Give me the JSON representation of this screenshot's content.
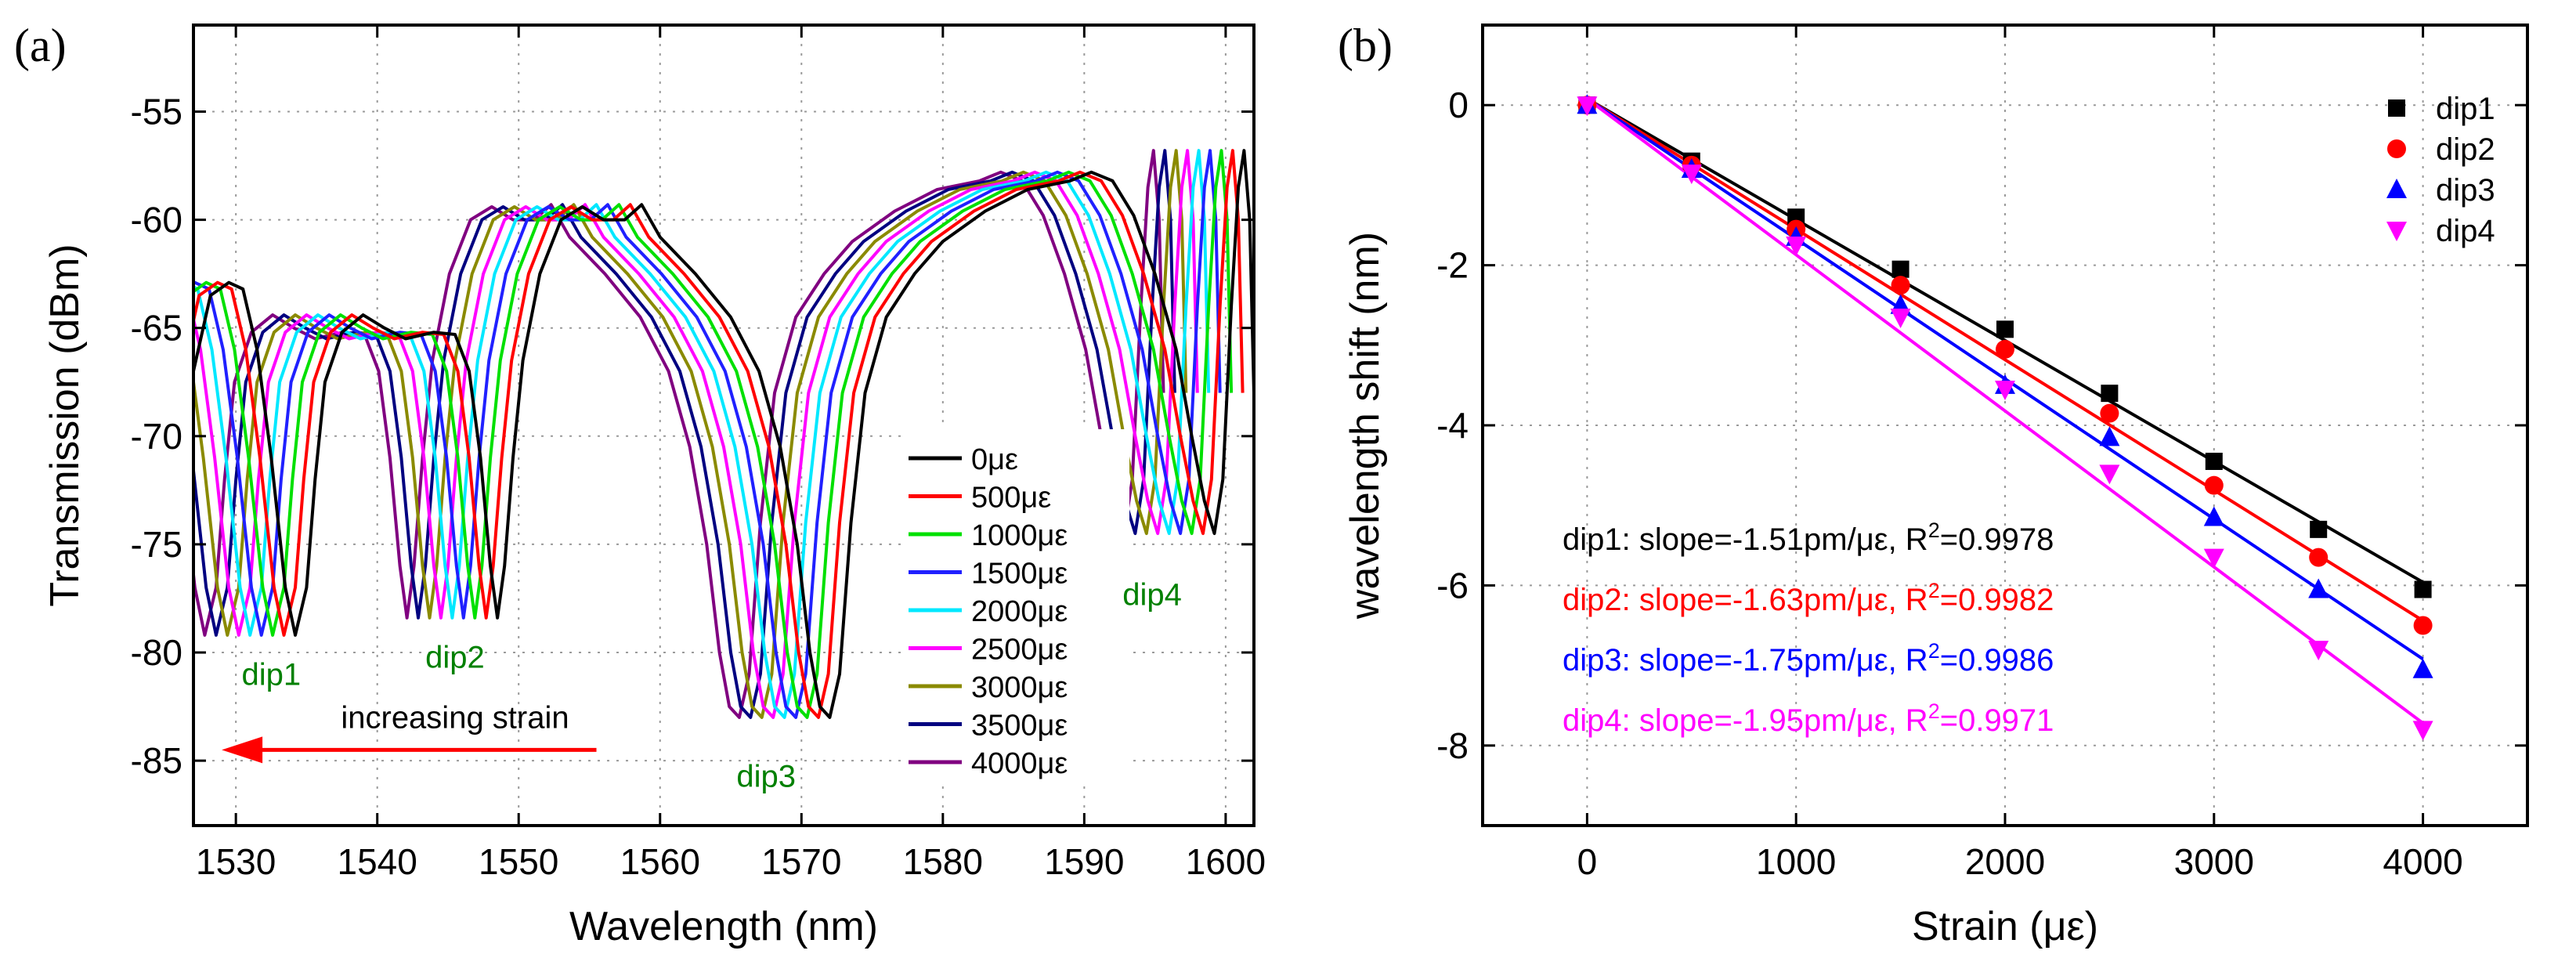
{
  "panels": {
    "a": {
      "label": "(a)"
    },
    "b": {
      "label": "(b)"
    }
  },
  "chart_data": [
    {
      "type": "line",
      "panel": "a",
      "xlabel": "Wavelength (nm)",
      "ylabel": "Transmission (dBm)",
      "xlim": [
        1527,
        1602
      ],
      "ylim": [
        -88,
        -51
      ],
      "xticks": [
        1530,
        1540,
        1550,
        1560,
        1570,
        1580,
        1590,
        1600
      ],
      "yticks": [
        -85,
        -80,
        -75,
        -70,
        -65,
        -60,
        -55
      ],
      "grid": "dotted",
      "legend_position": "lower-right-inside",
      "base_spectrum": {
        "strain": "0με",
        "points": [
          [
            1527,
            -67
          ],
          [
            1528.2,
            -63.5
          ],
          [
            1529.5,
            -62.9
          ],
          [
            1530.5,
            -63.2
          ],
          [
            1531.5,
            -66
          ],
          [
            1532.5,
            -71
          ],
          [
            1533.5,
            -77
          ],
          [
            1534.2,
            -79.2
          ],
          [
            1535,
            -77
          ],
          [
            1535.6,
            -72
          ],
          [
            1536.3,
            -67.5
          ],
          [
            1537.5,
            -65.2
          ],
          [
            1539,
            -64.4
          ],
          [
            1540.5,
            -65
          ],
          [
            1542,
            -65.5
          ],
          [
            1544,
            -65.2
          ],
          [
            1545.5,
            -65.3
          ],
          [
            1546.5,
            -67
          ],
          [
            1547.3,
            -71
          ],
          [
            1548,
            -76
          ],
          [
            1548.5,
            -78.4
          ],
          [
            1549,
            -76
          ],
          [
            1549.6,
            -71
          ],
          [
            1550.3,
            -66.5
          ],
          [
            1551.5,
            -62.5
          ],
          [
            1553,
            -60
          ],
          [
            1554.5,
            -59.4
          ],
          [
            1556,
            -60
          ],
          [
            1557.5,
            -60
          ],
          [
            1558.7,
            -59.3
          ],
          [
            1560,
            -60.8
          ],
          [
            1562.5,
            -62.5
          ],
          [
            1565,
            -64.5
          ],
          [
            1567,
            -67
          ],
          [
            1568.5,
            -70.5
          ],
          [
            1569.7,
            -75
          ],
          [
            1570.6,
            -80
          ],
          [
            1571.3,
            -82.5
          ],
          [
            1572,
            -83
          ],
          [
            1572.7,
            -81
          ],
          [
            1573.5,
            -74
          ],
          [
            1574.5,
            -68
          ],
          [
            1576,
            -64.5
          ],
          [
            1578,
            -62.5
          ],
          [
            1580,
            -61
          ],
          [
            1583,
            -59.6
          ],
          [
            1586,
            -58.6
          ],
          [
            1589,
            -58.2
          ],
          [
            1590.5,
            -57.8
          ],
          [
            1592,
            -58.2
          ],
          [
            1593.5,
            -59.8
          ],
          [
            1595,
            -62.5
          ],
          [
            1596.5,
            -66
          ],
          [
            1597.6,
            -70
          ],
          [
            1598.5,
            -73
          ],
          [
            1599.2,
            -74.5
          ],
          [
            1599.8,
            -72
          ],
          [
            1600.4,
            -64
          ],
          [
            1600.9,
            -58.5
          ],
          [
            1601.3,
            -56.8
          ],
          [
            1601.7,
            -60
          ],
          [
            1602,
            -68
          ]
        ]
      },
      "series": [
        {
          "name": "0με",
          "color": "#000000",
          "shift_nm": 0.0
        },
        {
          "name": "500με",
          "color": "#ff0000",
          "shift_nm": -0.8
        },
        {
          "name": "1000με",
          "color": "#00e000",
          "shift_nm": -1.6
        },
        {
          "name": "1500με",
          "color": "#2020ff",
          "shift_nm": -2.4
        },
        {
          "name": "2000με",
          "color": "#00e8ff",
          "shift_nm": -3.2
        },
        {
          "name": "2500με",
          "color": "#ff00ff",
          "shift_nm": -4.0
        },
        {
          "name": "3000με",
          "color": "#8a8a00",
          "shift_nm": -4.8
        },
        {
          "name": "3500με",
          "color": "#000080",
          "shift_nm": -5.6
        },
        {
          "name": "4000με",
          "color": "#800080",
          "shift_nm": -6.4
        }
      ],
      "annotations": [
        {
          "text": "dip1",
          "x": 1532.5,
          "y": -81.5,
          "color": "#008000"
        },
        {
          "text": "dip2",
          "x": 1545.5,
          "y": -80.7,
          "color": "#008000"
        },
        {
          "text": "dip3",
          "x": 1567.5,
          "y": -86.2,
          "color": "#008000"
        },
        {
          "text": "dip4",
          "x": 1594.8,
          "y": -77.8,
          "color": "#008000"
        },
        {
          "text": "increasing strain",
          "x": 1545.5,
          "y": -83.5,
          "color": "#000000"
        }
      ],
      "arrow": {
        "from": [
          1555.5,
          -84.5
        ],
        "to": [
          1529,
          -84.5
        ],
        "color": "#ff0000"
      }
    },
    {
      "type": "scatter",
      "panel": "b",
      "xlabel": "Strain (με)",
      "ylabel": "wavelength shift (nm)",
      "xlim": [
        -500,
        4500
      ],
      "ylim": [
        -9,
        1
      ],
      "xticks": [
        0,
        1000,
        2000,
        3000,
        4000
      ],
      "yticks": [
        0,
        -2,
        -4,
        -6,
        -8
      ],
      "grid": "dotted",
      "legend_position": "top-right",
      "x": [
        0,
        500,
        1000,
        1500,
        2000,
        2500,
        3000,
        3500,
        4000
      ],
      "series": [
        {
          "name": "dip1",
          "color": "#000000",
          "marker": "square",
          "values": [
            0,
            -0.7,
            -1.4,
            -2.05,
            -2.8,
            -3.6,
            -4.45,
            -5.3,
            -6.05
          ],
          "fit": {
            "slope": -0.00151,
            "intercept": 0.08
          },
          "fit_label": "dip1: slope=-1.51pm/με, R",
          "r2": "0.9978"
        },
        {
          "name": "dip2",
          "color": "#ff0000",
          "marker": "circle",
          "values": [
            0,
            -0.75,
            -1.55,
            -2.25,
            -3.05,
            -3.85,
            -4.75,
            -5.65,
            -6.5
          ],
          "fit": {
            "slope": -0.00163,
            "intercept": 0.08
          },
          "fit_label": "dip2: slope=-1.63pm/με, R",
          "r2": "0.9982"
        },
        {
          "name": "dip3",
          "color": "#0000ff",
          "marker": "triangle-up",
          "values": [
            0,
            -0.8,
            -1.65,
            -2.5,
            -3.5,
            -4.15,
            -5.15,
            -6.05,
            -7.05
          ],
          "fit": {
            "slope": -0.00175,
            "intercept": 0.08
          },
          "fit_label": "dip3: slope=-1.75pm/με, R",
          "r2": "0.9986"
        },
        {
          "name": "dip4",
          "color": "#ff00ff",
          "marker": "triangle-down",
          "values": [
            0,
            -0.85,
            -1.75,
            -2.65,
            -3.55,
            -4.6,
            -5.65,
            -6.8,
            -7.8
          ],
          "fit": {
            "slope": -0.00195,
            "intercept": 0.08
          },
          "fit_label": "dip4: slope=-1.95pm/με, R",
          "r2": "0.9971"
        }
      ],
      "r2_superscript": "2",
      "r2_equals": "="
    }
  ]
}
